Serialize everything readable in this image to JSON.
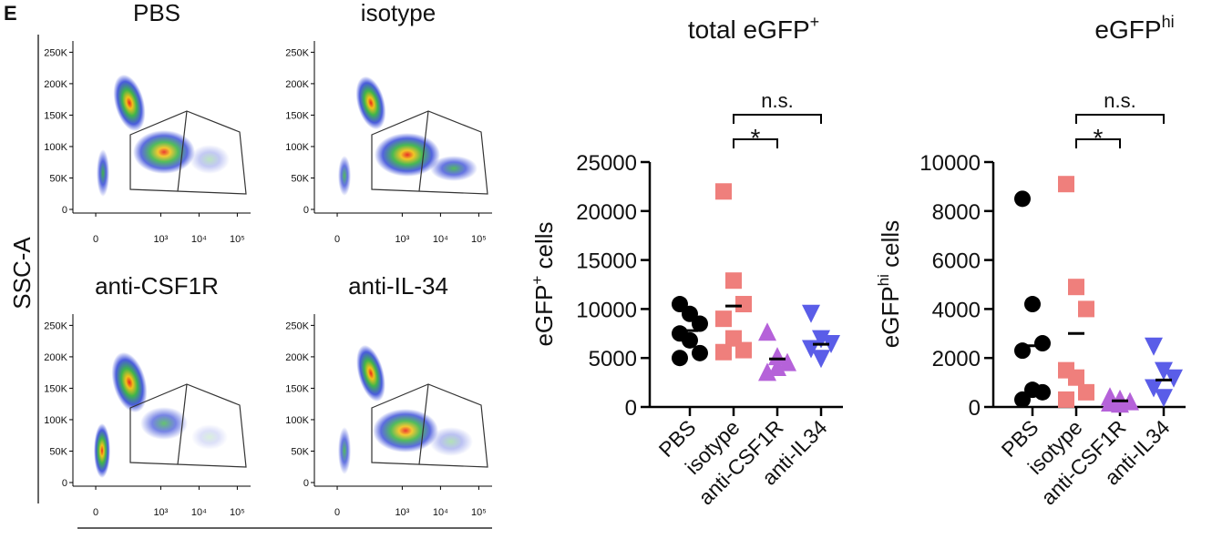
{
  "panel_label": "E",
  "chart_data": [
    {
      "type": "density",
      "ylabel": "SSC-A",
      "panels": [
        {
          "title": "PBS"
        },
        {
          "title": "isotype"
        },
        {
          "title": "anti-CSF1R"
        },
        {
          "title": "anti-IL-34"
        }
      ],
      "ylim": [
        0,
        262144
      ],
      "yticks": [
        {
          "value": 0,
          "label": "0"
        },
        {
          "value": 50000,
          "label": "50K"
        },
        {
          "value": 100000,
          "label": "100K"
        },
        {
          "value": 150000,
          "label": "150K"
        },
        {
          "value": 200000,
          "label": "200K"
        },
        {
          "value": 250000,
          "label": "250K"
        }
      ],
      "xscale": "biexponential",
      "xticks": [
        {
          "value": 0,
          "label": "0"
        },
        {
          "value": 1000,
          "label": "10³"
        },
        {
          "value": 10000,
          "label": "10⁴"
        },
        {
          "value": 100000,
          "label": "10⁵"
        }
      ]
    },
    {
      "type": "dot",
      "title": "total eGFP",
      "title_sup": "+",
      "ylabel": "eGFP",
      "ylabel_sup": "+",
      "ylabel_suffix": " cells",
      "categories": [
        "PBS",
        "isotype",
        "anti-CSF1R",
        "anti-IL34"
      ],
      "colors": [
        "#000000",
        "#ef7f7c",
        "#b562d9",
        "#5a5de8"
      ],
      "markers": [
        "circle",
        "square",
        "triangle-up",
        "triangle-down"
      ],
      "values": [
        [
          10500,
          9500,
          8500,
          7500,
          6800,
          5500,
          5000
        ],
        [
          22000,
          12900,
          10500,
          9000,
          7000,
          5800,
          5600
        ],
        [
          7600,
          5100,
          4500,
          3500,
          4000
        ],
        [
          9600,
          7000,
          6500,
          6000,
          5000
        ]
      ],
      "medians": [
        7800,
        10300,
        4900,
        6400
      ],
      "ylim": [
        0,
        25000
      ],
      "yticks": [
        0,
        5000,
        10000,
        15000,
        20000,
        25000
      ],
      "annotations": [
        {
          "text": "*",
          "from": 1,
          "to": 2
        },
        {
          "text": "n.s.",
          "from": 1,
          "to": 3
        }
      ]
    },
    {
      "type": "dot",
      "title": "eGFP",
      "title_sup": "hi",
      "ylabel": "eGFP",
      "ylabel_sup": "hi",
      "ylabel_suffix": " cells",
      "categories": [
        "PBS",
        "isotype",
        "anti-CSF1R",
        "anti-IL34"
      ],
      "colors": [
        "#000000",
        "#ef7f7c",
        "#b562d9",
        "#5a5de8"
      ],
      "markers": [
        "circle",
        "square",
        "triangle-up",
        "triangle-down"
      ],
      "values": [
        [
          8500,
          4200,
          2600,
          2300,
          700,
          600,
          300
        ],
        [
          9100,
          4900,
          4000,
          1500,
          1200,
          600,
          300
        ],
        [
          400,
          300,
          200,
          150,
          100
        ],
        [
          2500,
          1500,
          1200,
          800,
          400
        ]
      ],
      "medians": [
        2500,
        3000,
        250,
        1100
      ],
      "ylim": [
        0,
        10000
      ],
      "yticks": [
        0,
        2000,
        4000,
        6000,
        8000,
        10000
      ],
      "annotations": [
        {
          "text": "*",
          "from": 1,
          "to": 2
        },
        {
          "text": "n.s.",
          "from": 1,
          "to": 3
        }
      ]
    }
  ]
}
